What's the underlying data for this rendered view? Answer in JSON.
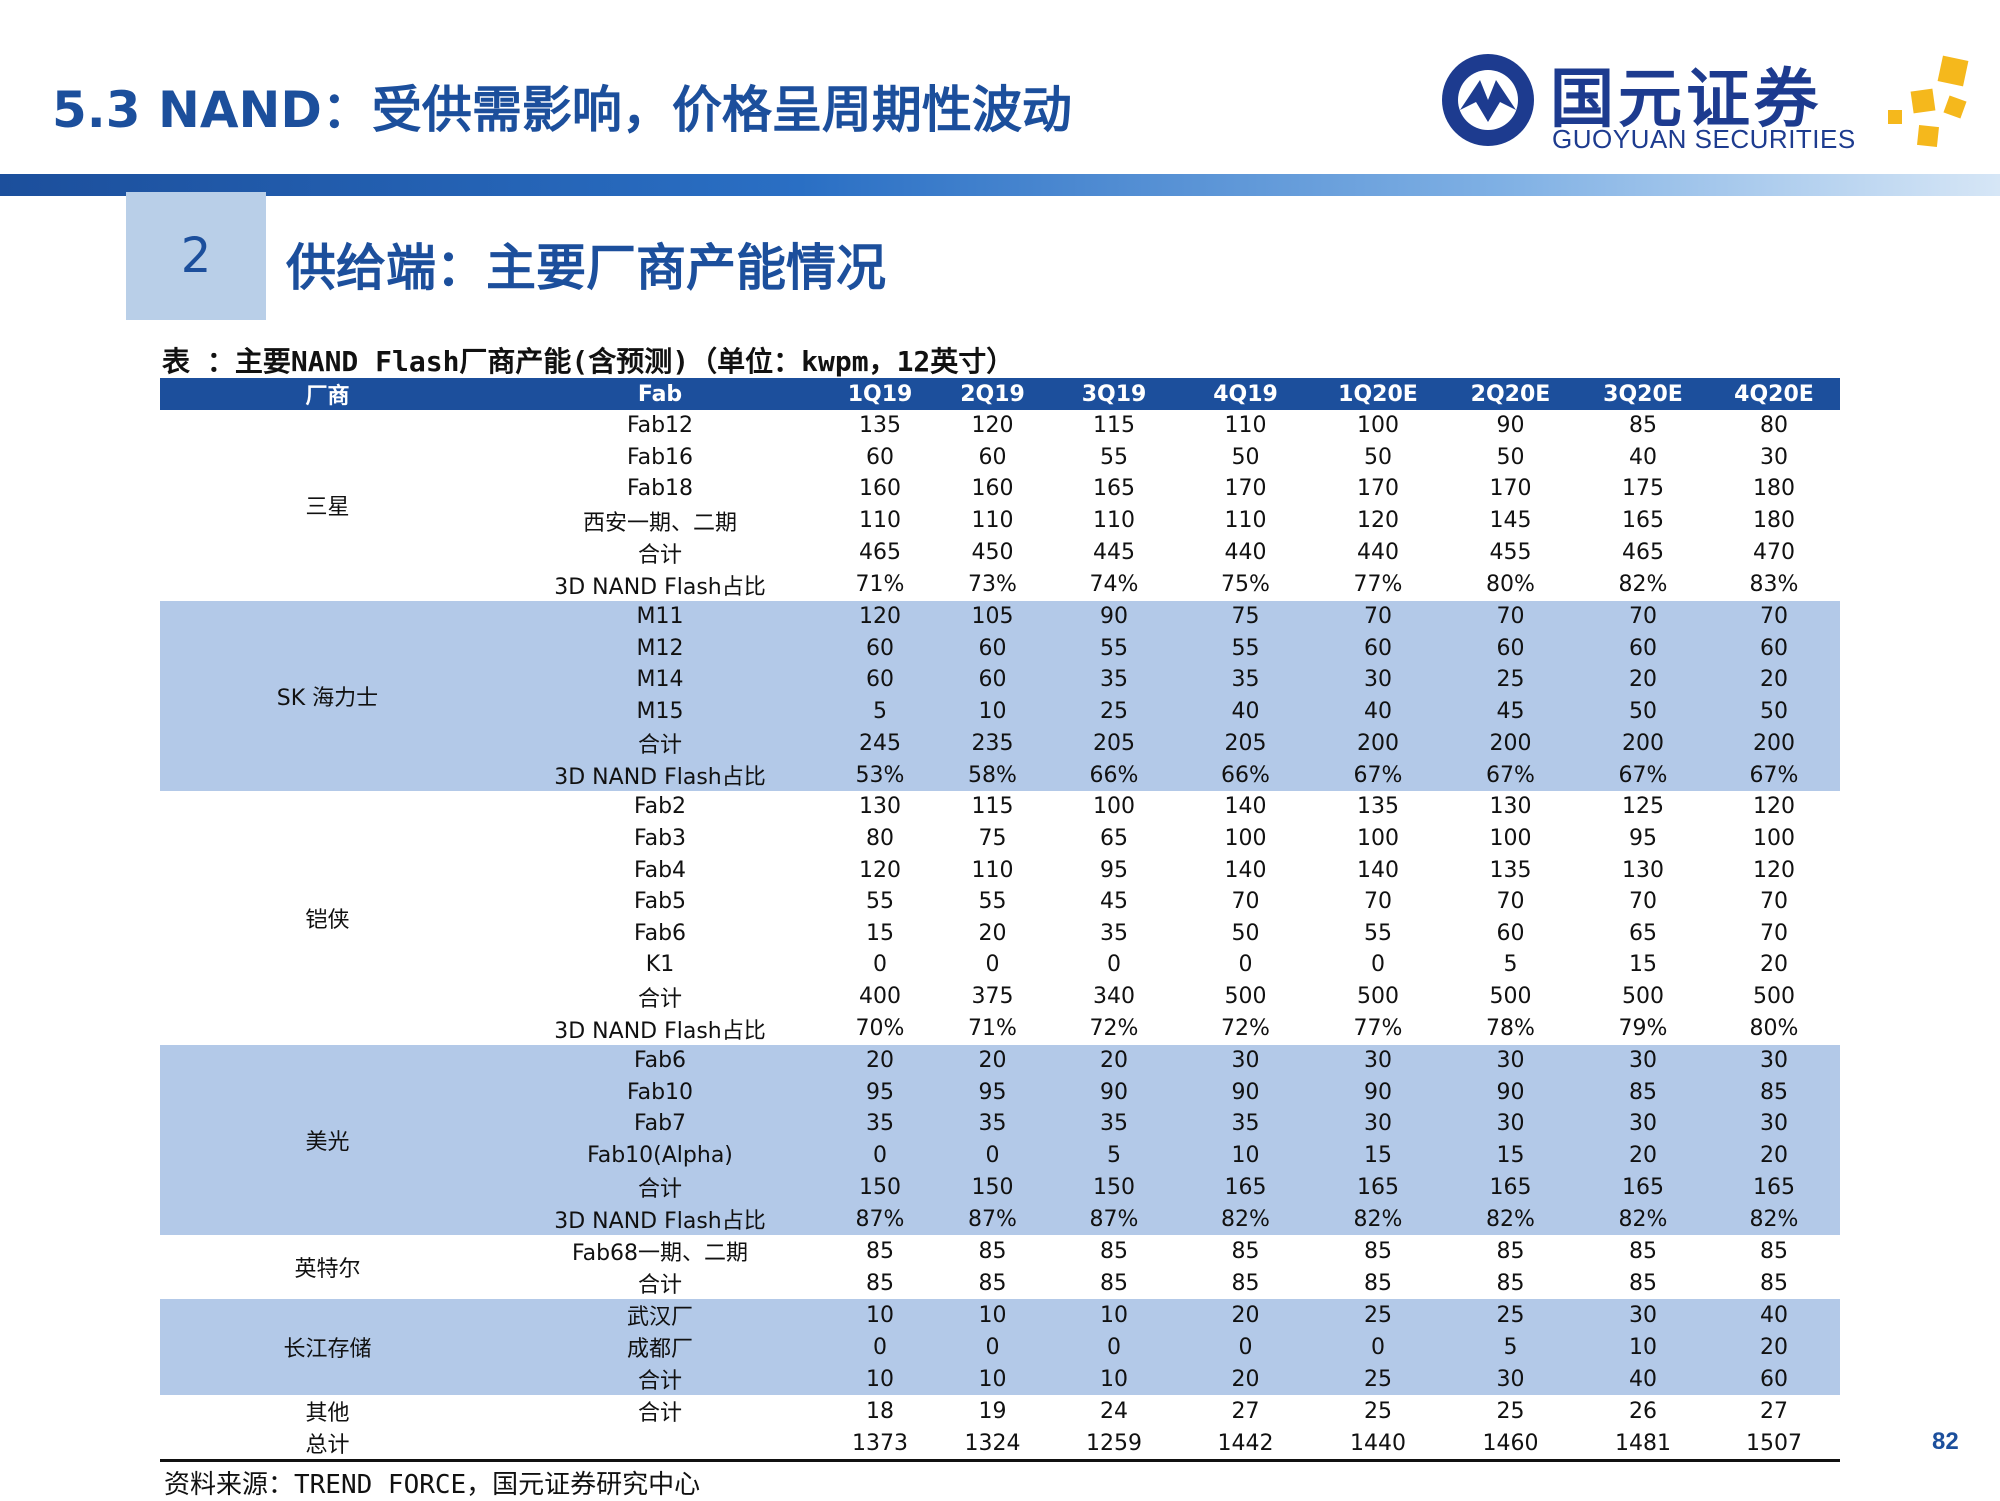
{
  "header": {
    "title": "5.3 NAND：受供需影响，价格呈周期性波动",
    "logo_cn": "国元证券",
    "logo_en": "GUOYUAN SECURITIES"
  },
  "section": {
    "number": "2",
    "title": "供给端：主要厂商产能情况"
  },
  "table": {
    "caption": "表 ：主要NAND Flash厂商产能(含预测)（单位：kwpm，12英寸）",
    "headers": [
      "厂商",
      "Fab",
      "1Q19",
      "2Q19",
      "3Q19",
      "4Q19",
      "1Q20E",
      "2Q20E",
      "3Q20E",
      "4Q20E"
    ],
    "groups": [
      {
        "vendor": "三星",
        "rows": [
          {
            "fab": "Fab12",
            "values": [
              "135",
              "120",
              "115",
              "110",
              "100",
              "90",
              "85",
              "80"
            ]
          },
          {
            "fab": "Fab16",
            "values": [
              "60",
              "60",
              "55",
              "50",
              "50",
              "50",
              "40",
              "30"
            ]
          },
          {
            "fab": "Fab18",
            "values": [
              "160",
              "160",
              "165",
              "170",
              "170",
              "170",
              "175",
              "180"
            ]
          },
          {
            "fab": "西安一期、二期",
            "values": [
              "110",
              "110",
              "110",
              "110",
              "120",
              "145",
              "165",
              "180"
            ]
          },
          {
            "fab": "合计",
            "values": [
              "465",
              "450",
              "445",
              "440",
              "440",
              "455",
              "465",
              "470"
            ]
          },
          {
            "fab": "3D NAND Flash占比",
            "values": [
              "71%",
              "73%",
              "74%",
              "75%",
              "77%",
              "80%",
              "82%",
              "83%"
            ]
          }
        ]
      },
      {
        "vendor": "SK 海力士",
        "rows": [
          {
            "fab": "M11",
            "values": [
              "120",
              "105",
              "90",
              "75",
              "70",
              "70",
              "70",
              "70"
            ]
          },
          {
            "fab": "M12",
            "values": [
              "60",
              "60",
              "55",
              "55",
              "60",
              "60",
              "60",
              "60"
            ]
          },
          {
            "fab": "M14",
            "values": [
              "60",
              "60",
              "35",
              "35",
              "30",
              "25",
              "20",
              "20"
            ]
          },
          {
            "fab": "M15",
            "values": [
              "5",
              "10",
              "25",
              "40",
              "40",
              "45",
              "50",
              "50"
            ]
          },
          {
            "fab": "合计",
            "values": [
              "245",
              "235",
              "205",
              "205",
              "200",
              "200",
              "200",
              "200"
            ]
          },
          {
            "fab": "3D NAND Flash占比",
            "values": [
              "53%",
              "58%",
              "66%",
              "66%",
              "67%",
              "67%",
              "67%",
              "67%"
            ]
          }
        ]
      },
      {
        "vendor": "铠侠",
        "rows": [
          {
            "fab": "Fab2",
            "values": [
              "130",
              "115",
              "100",
              "140",
              "135",
              "130",
              "125",
              "120"
            ]
          },
          {
            "fab": "Fab3",
            "values": [
              "80",
              "75",
              "65",
              "100",
              "100",
              "100",
              "95",
              "100"
            ]
          },
          {
            "fab": "Fab4",
            "values": [
              "120",
              "110",
              "95",
              "140",
              "140",
              "135",
              "130",
              "120"
            ]
          },
          {
            "fab": "Fab5",
            "values": [
              "55",
              "55",
              "45",
              "70",
              "70",
              "70",
              "70",
              "70"
            ]
          },
          {
            "fab": "Fab6",
            "values": [
              "15",
              "20",
              "35",
              "50",
              "55",
              "60",
              "65",
              "70"
            ]
          },
          {
            "fab": "K1",
            "values": [
              "0",
              "0",
              "0",
              "0",
              "0",
              "5",
              "15",
              "20"
            ]
          },
          {
            "fab": "合计",
            "values": [
              "400",
              "375",
              "340",
              "500",
              "500",
              "500",
              "500",
              "500"
            ]
          },
          {
            "fab": "3D NAND Flash占比",
            "values": [
              "70%",
              "71%",
              "72%",
              "72%",
              "77%",
              "78%",
              "79%",
              "80%"
            ]
          }
        ]
      },
      {
        "vendor": "美光",
        "rows": [
          {
            "fab": "Fab6",
            "values": [
              "20",
              "20",
              "20",
              "30",
              "30",
              "30",
              "30",
              "30"
            ]
          },
          {
            "fab": "Fab10",
            "values": [
              "95",
              "95",
              "90",
              "90",
              "90",
              "90",
              "85",
              "85"
            ]
          },
          {
            "fab": "Fab7",
            "values": [
              "35",
              "35",
              "35",
              "35",
              "30",
              "30",
              "30",
              "30"
            ]
          },
          {
            "fab": "Fab10(Alpha)",
            "values": [
              "0",
              "0",
              "5",
              "10",
              "15",
              "15",
              "20",
              "20"
            ]
          },
          {
            "fab": "合计",
            "values": [
              "150",
              "150",
              "150",
              "165",
              "165",
              "165",
              "165",
              "165"
            ]
          },
          {
            "fab": "3D NAND Flash占比",
            "values": [
              "87%",
              "87%",
              "87%",
              "82%",
              "82%",
              "82%",
              "82%",
              "82%"
            ]
          }
        ]
      },
      {
        "vendor": "英特尔",
        "rows": [
          {
            "fab": "Fab68一期、二期",
            "values": [
              "85",
              "85",
              "85",
              "85",
              "85",
              "85",
              "85",
              "85"
            ]
          },
          {
            "fab": "合计",
            "values": [
              "85",
              "85",
              "85",
              "85",
              "85",
              "85",
              "85",
              "85"
            ]
          }
        ]
      },
      {
        "vendor": "长江存储",
        "rows": [
          {
            "fab": "武汉厂",
            "values": [
              "10",
              "10",
              "10",
              "20",
              "25",
              "25",
              "30",
              "40"
            ]
          },
          {
            "fab": "成都厂",
            "values": [
              "0",
              "0",
              "0",
              "0",
              "0",
              "5",
              "10",
              "20"
            ]
          },
          {
            "fab": "合计",
            "values": [
              "10",
              "10",
              "10",
              "20",
              "25",
              "30",
              "40",
              "60"
            ]
          }
        ]
      },
      {
        "vendor": "其他",
        "rows": [
          {
            "fab": "合计",
            "values": [
              "18",
              "19",
              "24",
              "27",
              "25",
              "25",
              "26",
              "27"
            ]
          }
        ]
      },
      {
        "vendor": "总计",
        "rows": [
          {
            "fab": "",
            "values": [
              "1373",
              "1324",
              "1259",
              "1442",
              "1440",
              "1460",
              "1481",
              "1507"
            ]
          }
        ]
      }
    ]
  },
  "footer": {
    "source": "资料来源：TREND FORCE，国元证券研究中心",
    "page_number": "82"
  },
  "colors": {
    "brand_blue": "#1c4f9c",
    "row_shade": "#b3c9e8",
    "section_box": "#b9cfe8",
    "logo_gold": "#f5b81c"
  }
}
